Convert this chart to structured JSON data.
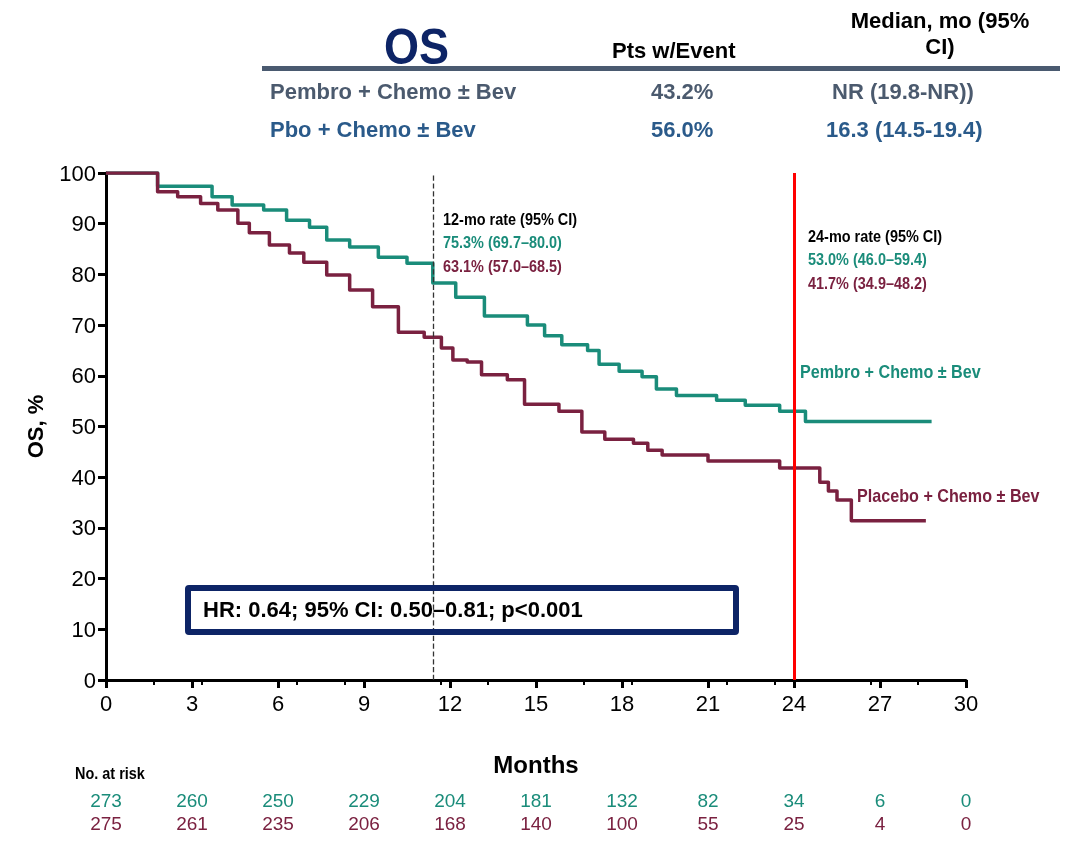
{
  "chart_data": {
    "type": "step",
    "title": "OS",
    "xlabel": "Months",
    "ylabel": "OS, %",
    "xlim": [
      0,
      30
    ],
    "xticks": [
      0,
      3,
      6,
      9,
      12,
      15,
      18,
      21,
      24,
      27,
      30
    ],
    "ylim": [
      0,
      100
    ],
    "yticks": [
      0,
      10,
      20,
      30,
      40,
      50,
      60,
      70,
      80,
      90,
      100
    ],
    "series": [
      {
        "name": "Pembro + Chemo ± Bev",
        "color": "#1a8c7a",
        "x": [
          0,
          1.8,
          3.7,
          4.4,
          5.5,
          6.3,
          7.1,
          7.7,
          8.5,
          9.5,
          10.5,
          11.4,
          12.2,
          13.2,
          14.7,
          15.3,
          15.9,
          16.8,
          17.2,
          17.9,
          18.7,
          19.2,
          19.9,
          21.3,
          22.3,
          23.5,
          24.4,
          28.8
        ],
        "values": [
          100,
          97.4,
          95.3,
          93.7,
          92.7,
          90.7,
          89.3,
          86.8,
          85.4,
          83.4,
          82.2,
          78.3,
          75.5,
          71.8,
          70,
          67.9,
          66.1,
          65,
          62.3,
          60.9,
          59.8,
          57.4,
          56.1,
          55.2,
          54.2,
          53,
          51,
          51
        ]
      },
      {
        "name": "Placebo + Chemo ± Bev",
        "color": "#7a2140",
        "x": [
          0,
          1.8,
          2.5,
          3.3,
          3.9,
          4.6,
          5,
          5.7,
          6.4,
          6.9,
          7.7,
          8.5,
          9.3,
          10.2,
          11.1,
          11.7,
          12.1,
          12.6,
          13.1,
          14,
          14.6,
          15.8,
          16.6,
          17.4,
          18.4,
          18.9,
          19.4,
          21,
          23.5,
          24.9,
          25.2,
          25.5,
          26,
          28.6
        ],
        "values": [
          100,
          96.3,
          95.3,
          94,
          92.7,
          90.1,
          88.2,
          85.8,
          84.2,
          82.4,
          79.9,
          76.9,
          73.6,
          68.6,
          67.6,
          65.5,
          63.1,
          62.7,
          60.2,
          59.2,
          54.4,
          53,
          48.9,
          47.5,
          46.7,
          45.3,
          44.4,
          43.2,
          41.8,
          39,
          37.3,
          35.5,
          31.4,
          31.4
        ]
      }
    ],
    "ref_lines": [
      {
        "axis": "x",
        "value": 11.4,
        "label": null,
        "color": "#333333",
        "line_style": "dashed"
      },
      {
        "axis": "x",
        "value": 24,
        "label": null,
        "color": "#ff0000",
        "line_style": "solid"
      }
    ],
    "annotations": [
      "Pts w/Event",
      "Median, mo (95% CI)",
      "Pembro + Chemo ± Bev",
      "43.2%",
      "NR (19.8-NR))",
      "Pbo + Chemo ± Bev",
      "56.0%",
      "16.3 (14.5-19.4)",
      "12-mo rate (95% CI)",
      "75.3% (69.7–80.0)",
      "63.1% (57.0–68.5)",
      "24-mo rate (95% CI)",
      "53.0% (46.0–59.4)",
      "41.7% (34.9–48.2)",
      "HR: 0.64; 95% CI: 0.50–0.81; p<0.001",
      "No. at risk",
      "273",
      "260",
      "250",
      "229",
      "204",
      "181",
      "132",
      "82",
      "34",
      "6",
      "0",
      "275",
      "261",
      "235",
      "206",
      "168",
      "140",
      "100",
      "55",
      "25",
      "4",
      "0"
    ]
  }
}
